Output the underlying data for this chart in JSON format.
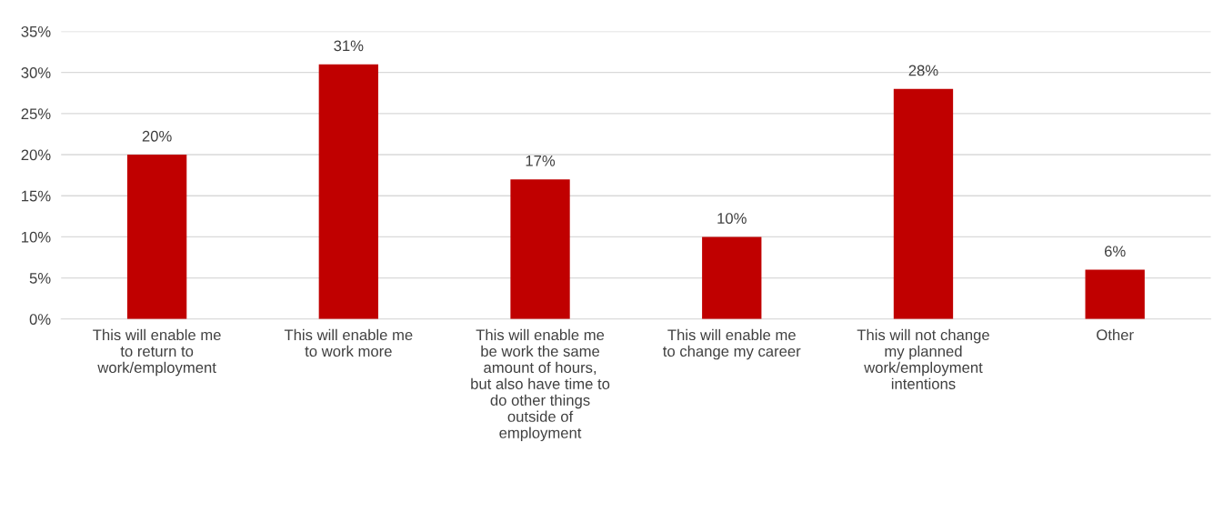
{
  "chart_data": {
    "type": "bar",
    "categories": [
      "This will enable me\nto return to\nwork/employment",
      "This will enable me\nto work more",
      "This will enable me\nbe work the same\namount of hours,\nbut also have time to\ndo other things\noutside of\nemployment",
      "This will enable me\nto change my career",
      "This will not change\nmy planned\nwork/employment\nintentions",
      "Other"
    ],
    "values": [
      20,
      31,
      17,
      10,
      28,
      6
    ],
    "value_labels": [
      "20%",
      "31%",
      "17%",
      "10%",
      "28%",
      "6%"
    ],
    "color": "#c00000",
    "ylim": [
      0,
      35
    ],
    "yticks": [
      {
        "value": 0,
        "label": "0%"
      },
      {
        "value": 5,
        "label": "5%"
      },
      {
        "value": 10,
        "label": "10%"
      },
      {
        "value": 15,
        "label": "15%"
      },
      {
        "value": 20,
        "label": "20%"
      },
      {
        "value": 25,
        "label": "25%"
      },
      {
        "value": 30,
        "label": "30%"
      },
      {
        "value": 35,
        "label": "35%"
      }
    ],
    "grid": "y",
    "legend": false
  }
}
